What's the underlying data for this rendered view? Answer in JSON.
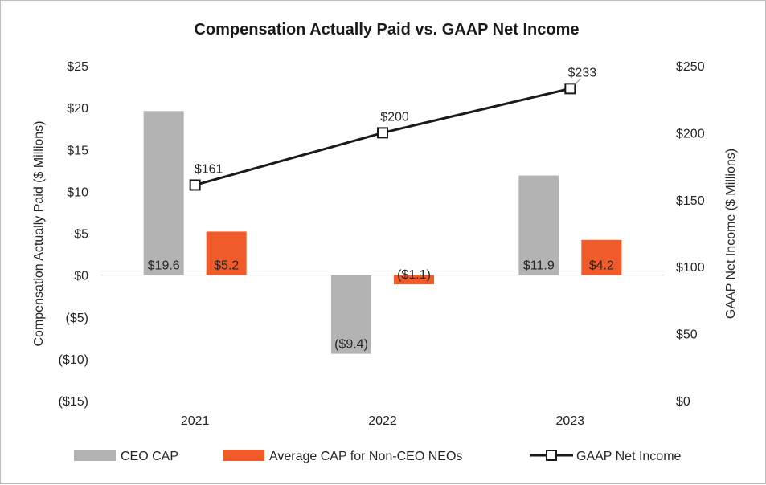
{
  "chart_data": {
    "type": "bar",
    "title": "Compensation Actually Paid vs. GAAP Net Income",
    "categories": [
      "2021",
      "2022",
      "2023"
    ],
    "ylabel": "Compensation Actually Paid ($ Millions)",
    "y2label": "GAAP Net Income ($ Millions)",
    "ylim": [
      -15,
      25
    ],
    "y2lim": [
      0,
      250
    ],
    "y_ticks": [
      25,
      20,
      15,
      10,
      5,
      0,
      -5,
      -10,
      -15
    ],
    "y_tick_labels": [
      "$25",
      "$20",
      "$15",
      "$10",
      "$5",
      "$0",
      "($5)",
      "($10)",
      "($15)"
    ],
    "y2_ticks": [
      250,
      200,
      150,
      100,
      50,
      0
    ],
    "y2_tick_labels": [
      "$250",
      "$200",
      "$150",
      "$100",
      "$50",
      "$0"
    ],
    "series": [
      {
        "name": "CEO CAP",
        "kind": "bar",
        "axis": "left",
        "color": "#b3b3b3",
        "values": [
          19.6,
          -9.4,
          11.9
        ],
        "labels": [
          "$19.6",
          "($9.4)",
          "$11.9"
        ]
      },
      {
        "name": "Average CAP for Non-CEO NEOs",
        "kind": "bar",
        "axis": "left",
        "color": "#f15a29",
        "values": [
          5.2,
          -1.1,
          4.2
        ],
        "labels": [
          "$5.2",
          "($1.1)",
          "$4.2"
        ]
      },
      {
        "name": "GAAP Net Income",
        "kind": "line",
        "axis": "right",
        "color": "#1a1a1a",
        "values": [
          161,
          200,
          233
        ],
        "labels": [
          "$161",
          "$200",
          "$233"
        ]
      }
    ],
    "grid": false,
    "legend": "bottom"
  }
}
